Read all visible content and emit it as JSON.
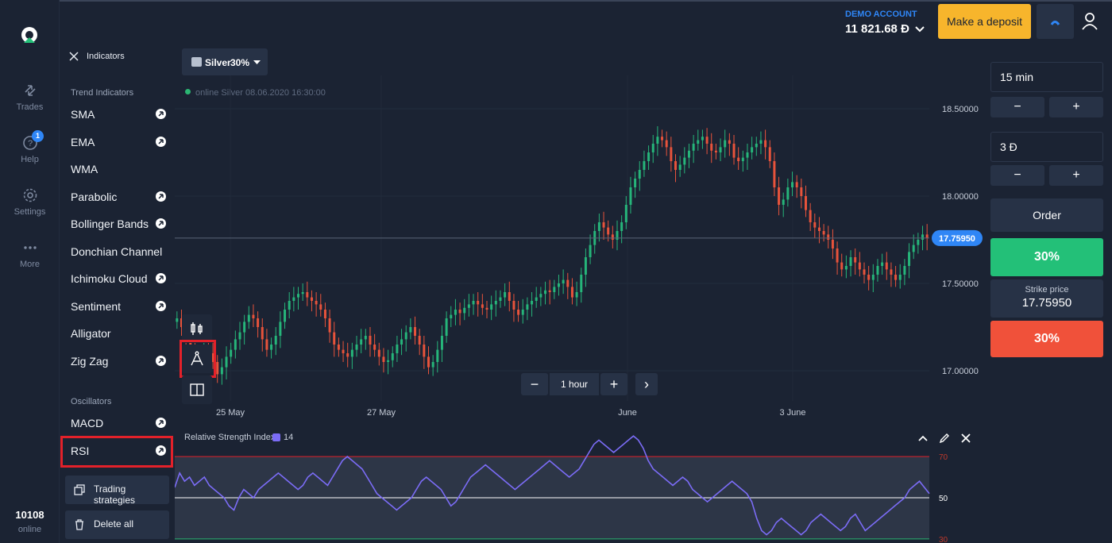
{
  "nav": {
    "items": [
      {
        "label": "Trades",
        "icon": "arrows-trade-icon"
      },
      {
        "label": "Help",
        "icon": "help-icon",
        "badge": "1"
      },
      {
        "label": "Settings",
        "icon": "gear-icon"
      },
      {
        "label": "More",
        "icon": "more-dots-icon"
      }
    ],
    "online_count": "10108",
    "online_label": "online"
  },
  "indicators": {
    "title": "Indicators",
    "trend_title": "Trend Indicators",
    "trend": [
      "SMA",
      "EMA",
      "WMA",
      "Parabolic",
      "Bollinger Bands",
      "Donchian Channel",
      "Ichimoku Cloud",
      "Sentiment",
      "Alligator",
      "Zig Zag"
    ],
    "oscillators_title": "Oscillators",
    "oscillators": [
      "MACD",
      "RSI"
    ],
    "trading_strategies_label": "Trading strategies",
    "delete_all_label": "Delete all"
  },
  "account": {
    "label": "DEMO ACCOUNT",
    "balance": "11 821.68 Đ",
    "deposit_label": "Make a deposit"
  },
  "asset": {
    "name": "Silver",
    "payout": "30%",
    "status": "online Silver  08.06.2020 16:30:00"
  },
  "zoom": {
    "minus": "−",
    "label": "1 hour",
    "plus": "+",
    "next": "›"
  },
  "trade": {
    "time": "15 min",
    "amount": "3 Đ",
    "minus": "−",
    "plus": "+",
    "order_label": "Order",
    "up_label": "30%",
    "strike_label": "Strike price",
    "strike_value": "17.75950",
    "down_label": "30%"
  },
  "rsi": {
    "title": "Relative Strength Index",
    "period": "14"
  },
  "colors": {
    "bull": "#26b57a",
    "bear": "#e8533b",
    "accent": "#2f86f6",
    "rsi_line": "#7b6cf6"
  },
  "chart_data": [
    {
      "type": "candlestick",
      "title": "",
      "xlabel": "",
      "ylabel": "",
      "x_ticks": [
        "25 May",
        "27 May",
        "June",
        "3 June"
      ],
      "y_ticks": [
        "18.50000",
        "18.00000",
        "17.50000",
        "17.00000"
      ],
      "ylim": [
        16.8,
        18.6
      ],
      "current_price": 17.7595,
      "current_price_label": "17.75950",
      "close_values": [
        17.3,
        17.25,
        17.2,
        17.15,
        17.08,
        17.05,
        17.12,
        17.1,
        17.05,
        16.98,
        17.02,
        17.08,
        17.12,
        17.18,
        17.22,
        17.28,
        17.32,
        17.3,
        17.25,
        17.18,
        17.12,
        17.15,
        17.2,
        17.28,
        17.35,
        17.4,
        17.42,
        17.44,
        17.45,
        17.42,
        17.4,
        17.38,
        17.35,
        17.3,
        17.22,
        17.15,
        17.12,
        17.1,
        17.08,
        17.12,
        17.15,
        17.18,
        17.2,
        17.15,
        17.12,
        17.08,
        17.05,
        17.06,
        17.1,
        17.15,
        17.18,
        17.22,
        17.25,
        17.2,
        17.15,
        17.08,
        17.02,
        17.05,
        17.12,
        17.2,
        17.3,
        17.32,
        17.35,
        17.33,
        17.36,
        17.38,
        17.4,
        17.38,
        17.36,
        17.35,
        17.38,
        17.4,
        17.42,
        17.45,
        17.4,
        17.35,
        17.32,
        17.35,
        17.38,
        17.4,
        17.42,
        17.44,
        17.46,
        17.45,
        17.48,
        17.5,
        17.52,
        17.48,
        17.42,
        17.45,
        17.55,
        17.65,
        17.72,
        17.8,
        17.85,
        17.82,
        17.78,
        17.75,
        17.8,
        17.85,
        17.95,
        18.05,
        18.1,
        18.15,
        18.2,
        18.25,
        18.3,
        18.34,
        18.32,
        18.28,
        18.2,
        18.15,
        18.18,
        18.22,
        18.26,
        18.3,
        18.32,
        18.34,
        18.3,
        18.26,
        18.25,
        18.28,
        18.32,
        18.3,
        18.22,
        18.2,
        18.22,
        18.25,
        18.28,
        18.3,
        18.32,
        18.28,
        18.2,
        18.05,
        17.95,
        17.98,
        18.05,
        18.08,
        18.05,
        18.0,
        17.92,
        17.85,
        17.82,
        17.8,
        17.78,
        17.75,
        17.7,
        17.62,
        17.58,
        17.6,
        17.65,
        17.62,
        17.58,
        17.55,
        17.52,
        17.55,
        17.6,
        17.62,
        17.58,
        17.55,
        17.52,
        17.55,
        17.6,
        17.68,
        17.72,
        17.75,
        17.78,
        17.76
      ]
    },
    {
      "type": "line",
      "title": "Relative Strength Index",
      "xlabel": "",
      "ylabel": "",
      "y_ticks": [
        "70",
        "50",
        "30"
      ],
      "ylim": [
        30,
        80
      ],
      "levels": [
        70,
        50,
        30
      ],
      "series": [
        {
          "name": "14",
          "values": [
            55,
            62,
            58,
            60,
            56,
            58,
            60,
            56,
            54,
            52,
            50,
            46,
            44,
            50,
            54,
            52,
            50,
            54,
            56,
            58,
            60,
            62,
            60,
            58,
            56,
            54,
            56,
            60,
            62,
            60,
            58,
            56,
            60,
            64,
            68,
            70,
            68,
            66,
            64,
            60,
            56,
            52,
            50,
            48,
            46,
            44,
            46,
            48,
            50,
            54,
            58,
            60,
            58,
            56,
            54,
            50,
            46,
            48,
            52,
            56,
            60,
            62,
            64,
            66,
            64,
            62,
            60,
            58,
            56,
            54,
            56,
            58,
            60,
            62,
            64,
            66,
            68,
            66,
            64,
            62,
            60,
            62,
            64,
            68,
            72,
            76,
            78,
            76,
            74,
            72,
            74,
            76,
            78,
            80,
            78,
            74,
            68,
            64,
            62,
            60,
            58,
            56,
            58,
            60,
            58,
            54,
            52,
            50,
            48,
            50,
            52,
            54,
            56,
            58,
            56,
            54,
            52,
            48,
            40,
            34,
            32,
            34,
            38,
            40,
            38,
            36,
            34,
            32,
            34,
            38,
            40,
            42,
            40,
            38,
            36,
            34,
            36,
            40,
            42,
            38,
            34,
            36,
            38,
            40,
            42,
            44,
            46,
            48,
            50,
            54,
            56,
            58,
            55,
            52
          ]
        }
      ]
    }
  ]
}
